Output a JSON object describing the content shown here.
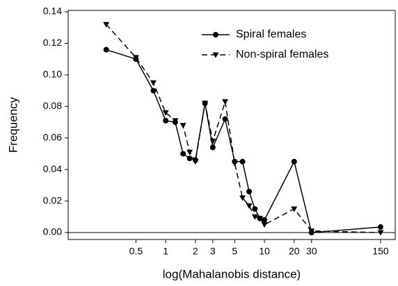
{
  "chart_data": {
    "type": "line",
    "xscale": "log",
    "xlabel": "log(Mahalanobis distance)",
    "ylabel": "Frequency",
    "x": [
      0.25,
      0.5,
      0.75,
      1,
      1.25,
      1.5,
      1.75,
      2,
      2.5,
      3,
      4,
      5,
      6,
      7,
      8,
      9,
      10,
      20,
      30,
      150
    ],
    "series": [
      {
        "name": "Spiral females",
        "color": "#000000",
        "line_style": "solid",
        "marker": "circle",
        "values": [
          0.116,
          0.11,
          0.09,
          0.071,
          0.07,
          0.05,
          0.047,
          0.046,
          0.082,
          0.054,
          0.072,
          0.045,
          0.045,
          0.026,
          0.015,
          0.009,
          0.008,
          0.045,
          0.0,
          0.0035
        ]
      },
      {
        "name": "Non-spiral females",
        "color": "#000000",
        "line_style": "dashed",
        "marker": "triangle-down",
        "values": [
          0.132,
          0.111,
          0.095,
          0.076,
          0.071,
          0.068,
          0.051,
          0.045,
          0.082,
          0.058,
          0.083,
          0.044,
          0.022,
          0.017,
          0.01,
          0.009,
          0.005,
          0.015,
          0.001,
          0.0
        ]
      }
    ],
    "xlim": [
      0.103,
      211
    ],
    "xticks": [
      0.5,
      1,
      2,
      3,
      5,
      10,
      20,
      30,
      150
    ],
    "ylim": [
      -0.0044,
      0.1409
    ],
    "yticks": [
      {
        "value": 0,
        "label": "0.00"
      },
      {
        "value": 0.02,
        "label": "0.02"
      },
      {
        "value": 0.04,
        "label": "0.04"
      },
      {
        "value": 0.06,
        "label": "0.06"
      },
      {
        "value": 0.08,
        "label": "0.08"
      },
      {
        "value": 0.1,
        "label": "0.10"
      },
      {
        "value": 0.12,
        "label": "0.12"
      },
      {
        "value": 0.14,
        "label": "0.14"
      }
    ],
    "zero_line": true,
    "legend": "top-right"
  }
}
